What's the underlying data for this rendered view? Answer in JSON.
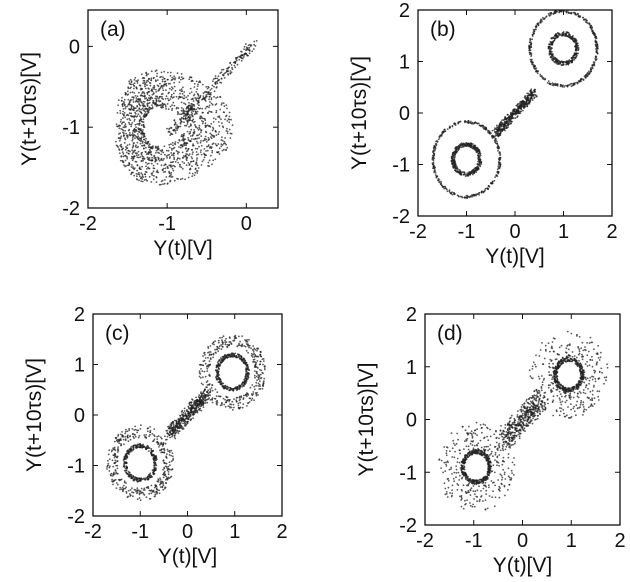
{
  "chart_data": [
    {
      "panel": "(a)",
      "type": "scatter",
      "xlabel": "Y(t)[V]",
      "ylabel": "Y(t+10τs)[V]",
      "xlim": [
        -2,
        0.4
      ],
      "ylim": [
        -2,
        0.45
      ],
      "xticks": [
        "-2",
        "-1",
        "0"
      ],
      "xtick_values": [
        -2,
        -1,
        0
      ],
      "yticks": [
        "0",
        "-1",
        "-2"
      ],
      "ytick_values": [
        0,
        -1,
        -2
      ],
      "attractor": {
        "kind": "single-scroll",
        "center": [
          -1.1,
          -1.0
        ],
        "inner_radius": [
          0.25,
          0.3
        ],
        "outer_radius": [
          0.75,
          0.8
        ],
        "spread": 0.35
      }
    },
    {
      "panel": "(b)",
      "type": "scatter",
      "xlabel": "Y(t)[V]",
      "ylabel": "Y(t+10τs)[V]",
      "xlim": [
        -2,
        2
      ],
      "ylim": [
        -2,
        2
      ],
      "xticks": [
        "-2",
        "-1",
        "0",
        "1",
        "2"
      ],
      "xtick_values": [
        -2,
        -1,
        0,
        1,
        2
      ],
      "yticks": [
        "2",
        "1",
        "0",
        "-1",
        "-2"
      ],
      "ytick_values": [
        2,
        1,
        0,
        -1,
        -2
      ],
      "attractor": {
        "kind": "double-scroll",
        "centers": [
          [
            -1.0,
            -0.9
          ],
          [
            1.0,
            1.25
          ]
        ],
        "inner_radius": 0.25,
        "outer_radius": 0.75,
        "spread": 0.05
      }
    },
    {
      "panel": "(c)",
      "type": "scatter",
      "xlabel": "Y(t)[V]",
      "ylabel": "Y(t+10τs)[V]",
      "xlim": [
        -2,
        2
      ],
      "ylim": [
        -2,
        2
      ],
      "xticks": [
        "-2",
        "-1",
        "0",
        "1",
        "2"
      ],
      "xtick_values": [
        -2,
        -1,
        0,
        1,
        2
      ],
      "yticks": [
        "2",
        "1",
        "0",
        "-1",
        "-2"
      ],
      "ytick_values": [
        2,
        1,
        0,
        -1,
        -2
      ],
      "attractor": {
        "kind": "double-scroll",
        "centers": [
          [
            -1.0,
            -0.95
          ],
          [
            0.95,
            0.85
          ]
        ],
        "inner_radius": 0.3,
        "outer_radius": 0.75,
        "spread": 0.25
      }
    },
    {
      "panel": "(d)",
      "type": "scatter",
      "xlabel": "Y(t)[V]",
      "ylabel": "Y(t+10τs)[V]",
      "xlim": [
        -2,
        2
      ],
      "ylim": [
        -2,
        2
      ],
      "xticks": [
        "-2",
        "-1",
        "0",
        "1",
        "2"
      ],
      "xtick_values": [
        -2,
        -1,
        0,
        1,
        2
      ],
      "yticks": [
        "2",
        "1",
        "0",
        "-1",
        "-2"
      ],
      "ytick_values": [
        2,
        1,
        0,
        -1,
        -2
      ],
      "attractor": {
        "kind": "double-scroll",
        "centers": [
          [
            -0.95,
            -0.9
          ],
          [
            0.95,
            0.85
          ]
        ],
        "inner_radius": 0.25,
        "outer_radius": 0.85,
        "spread": 0.6
      }
    }
  ]
}
